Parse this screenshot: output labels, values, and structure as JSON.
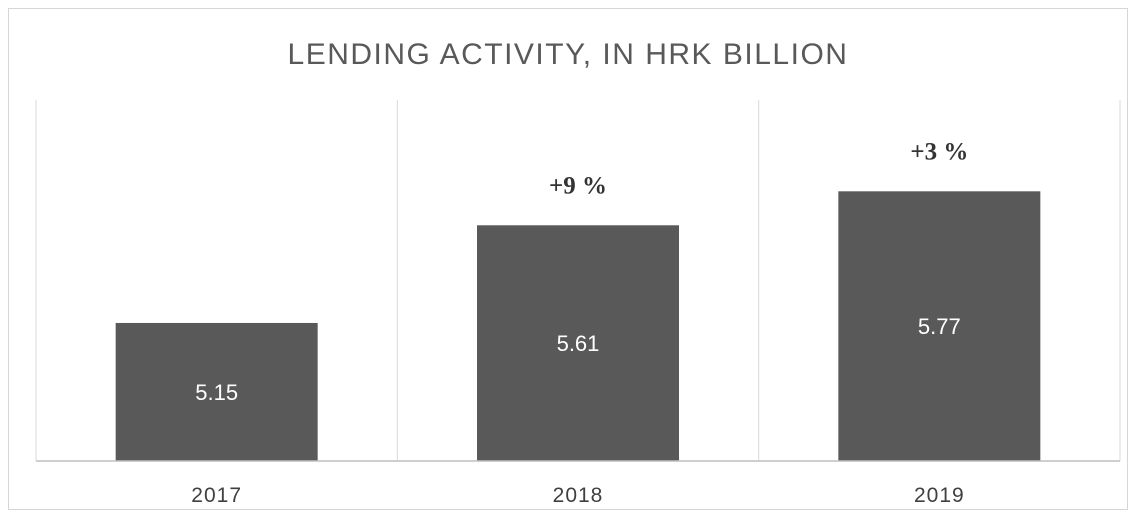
{
  "chart_data": {
    "type": "bar",
    "title": "LENDING ACTIVITY, IN HRK BILLION",
    "categories": [
      "2017",
      "2018",
      "2019"
    ],
    "values": [
      5.15,
      5.61,
      5.77
    ],
    "data_labels": [
      "5.15",
      "5.61",
      "5.77"
    ],
    "growth_labels": [
      "",
      "+9 %",
      "+3 %"
    ],
    "xlabel": "",
    "ylabel": "",
    "ylim": [
      4.5,
      6.2
    ],
    "grid": "vertical-separators",
    "legend": "none",
    "colors": {
      "bar": "#595959",
      "grid": "#d9d9d9",
      "axis": "#bfbfbf"
    }
  }
}
